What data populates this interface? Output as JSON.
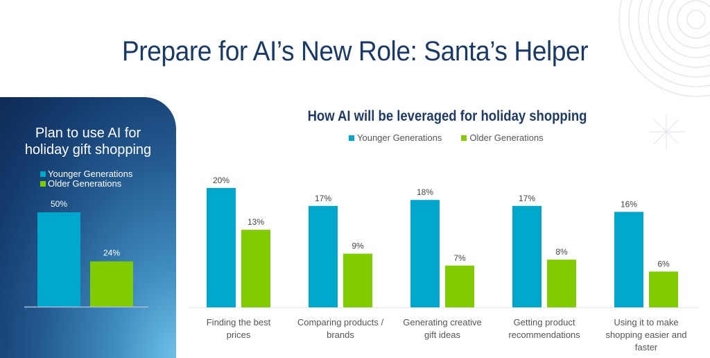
{
  "page": {
    "title": "Prepare for AI’s New Role: Santa’s Helper"
  },
  "decorations": {
    "top_right": "concentric-circles-icon",
    "right": "sparkle-star-icon"
  },
  "colors": {
    "younger": "#00a7cc",
    "older": "#80cc00",
    "title": "#1a3a66"
  },
  "chart_data": [
    {
      "type": "bar",
      "title": "Plan to use AI for holiday gift shopping",
      "title_lines": [
        "Plan to use AI for",
        "holiday gift shopping"
      ],
      "legend": [
        "Younger Generations",
        "Older Generations"
      ],
      "legend_placement": "top-left",
      "categories": [
        ""
      ],
      "series": [
        {
          "name": "Younger Generations",
          "values": [
            50
          ],
          "labels": [
            "50%"
          ]
        },
        {
          "name": "Older Generations",
          "values": [
            24
          ],
          "labels": [
            "24%"
          ]
        }
      ],
      "xlabel": "",
      "ylabel": "",
      "ylim": [
        0,
        50
      ],
      "grid": false
    },
    {
      "type": "bar",
      "title": "How AI will be leveraged for holiday shopping",
      "legend": [
        "Younger Generations",
        "Older Generations"
      ],
      "legend_placement": "top",
      "categories": [
        "Finding the best prices",
        "Comparing products / brands",
        "Generating creative gift ideas",
        "Getting product recommendations",
        "Using it to make shopping easier and faster"
      ],
      "category_lines": [
        [
          "Finding the best",
          "prices"
        ],
        [
          "Comparing products /",
          "brands"
        ],
        [
          "Generating creative",
          "gift ideas"
        ],
        [
          "Getting product",
          "recommendations"
        ],
        [
          "Using it to make",
          "shopping easier and",
          "faster"
        ]
      ],
      "series": [
        {
          "name": "Younger Generations",
          "values": [
            20,
            17,
            18,
            17,
            16
          ],
          "labels": [
            "20%",
            "17%",
            "18%",
            "17%",
            "16%"
          ]
        },
        {
          "name": "Older Generations",
          "values": [
            13,
            9,
            7,
            8,
            6
          ],
          "labels": [
            "13%",
            "9%",
            "7%",
            "8%",
            "6%"
          ]
        }
      ],
      "xlabel": "",
      "ylabel": "",
      "ylim": [
        0,
        20
      ],
      "grid": false
    }
  ]
}
